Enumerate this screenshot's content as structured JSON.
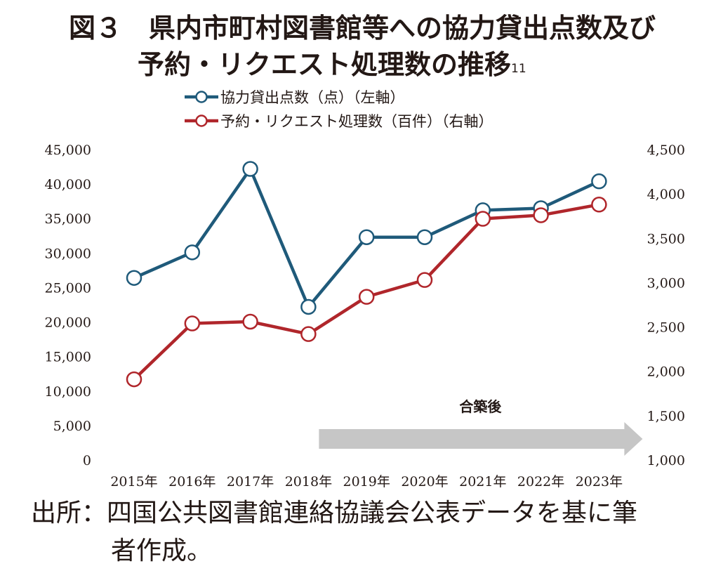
{
  "figure": {
    "title_line1": "図３　県内市町村図書館等への協力貸出点数及び",
    "title_line2": "予約・リクエスト処理数の推移",
    "footnote_ref": "11",
    "source_line1": "出所：四国公共図書館連絡協議会公表データを基に筆",
    "source_line2": "者作成。"
  },
  "chart_data": {
    "type": "line",
    "categories": [
      "2015年",
      "2016年",
      "2017年",
      "2018年",
      "2019年",
      "2020年",
      "2021年",
      "2022年",
      "2023年"
    ],
    "series": [
      {
        "name": "協力貸出点数（点）（左軸）",
        "axis": "left",
        "color": "#1f5a7a",
        "values": [
          26400,
          30100,
          42200,
          22200,
          32300,
          32300,
          36200,
          36500,
          40400
        ]
      },
      {
        "name": "予約・リクエスト処理数（百件）（右軸）",
        "axis": "right",
        "color": "#b0262b",
        "values": [
          1910,
          2540,
          2560,
          2420,
          2840,
          3030,
          3720,
          3760,
          3880
        ]
      }
    ],
    "y_left": {
      "range": [
        0,
        45000
      ],
      "ticks": [
        "0",
        "5,000",
        "10,000",
        "15,000",
        "20,000",
        "25,000",
        "30,000",
        "35,000",
        "40,000",
        "45,000"
      ]
    },
    "y_right": {
      "range": [
        1000,
        4500
      ],
      "ticks": [
        "1,000",
        "1,500",
        "2,000",
        "2,500",
        "3,000",
        "3,500",
        "4,000",
        "4,500"
      ]
    },
    "annotation": {
      "text": "合築後",
      "arrow_from": "2018年",
      "arrow_to": "2023年"
    },
    "legend_position": "top-left",
    "grid": false
  }
}
